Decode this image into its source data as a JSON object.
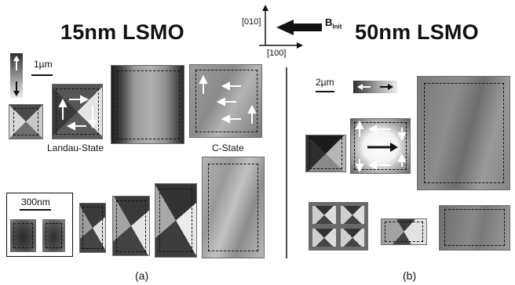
{
  "panel_a": {
    "title": "15nm LSMO",
    "caption": "(a)",
    "scale_bar_top": "1µm",
    "scale_bar_bottom": "300nm",
    "labels": {
      "landau": "Landau-State",
      "cstate": "C-State"
    }
  },
  "panel_b": {
    "title": "50nm LSMO",
    "caption": "(b)",
    "scale_bar": "2µm"
  },
  "axes": {
    "y_label": "[010]",
    "x_label": "[100]",
    "field_label": "B",
    "field_subscript": "Init"
  },
  "colors": {
    "background": "#ffffff",
    "ink": "#111111",
    "arrow_white": "#ffffff"
  }
}
